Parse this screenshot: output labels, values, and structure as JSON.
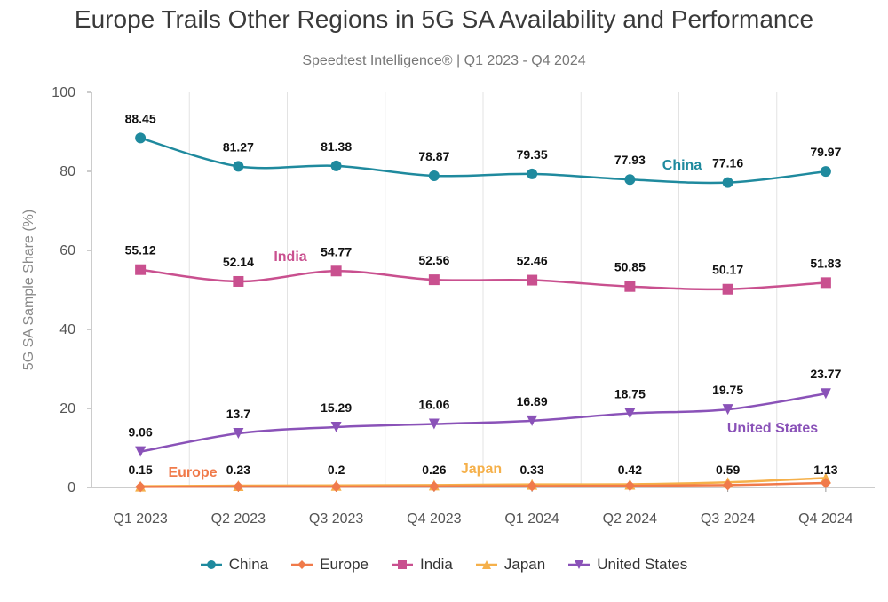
{
  "chart_data": {
    "type": "line",
    "title": "Europe Trails Other Regions in 5G SA Availability and Performance",
    "subtitle": "Speedtest Intelligence® | Q1 2023 - Q4 2024",
    "ylabel": "5G SA Sample Share (%)",
    "xlabel": "",
    "ylim": [
      0,
      100
    ],
    "yticks": [
      0,
      20,
      40,
      60,
      80,
      100
    ],
    "grid": "vertical",
    "legend_position": "bottom",
    "categories": [
      "Q1 2023",
      "Q2 2023",
      "Q3 2023",
      "Q4 2023",
      "Q1 2024",
      "Q2 2024",
      "Q3 2024",
      "Q4 2024"
    ],
    "series": [
      {
        "name": "China",
        "color": "#1f8a9e",
        "marker": "circle",
        "values": [
          88.45,
          81.27,
          81.38,
          78.87,
          79.35,
          77.93,
          77.16,
          79.97
        ],
        "value_labels": [
          "88.45",
          "81.27",
          "81.38",
          "78.87",
          "79.35",
          "77.93",
          "77.16",
          "79.97"
        ]
      },
      {
        "name": "Europe",
        "color": "#f07a4a",
        "marker": "diamond",
        "values": [
          0.15,
          0.23,
          0.2,
          0.26,
          0.33,
          0.42,
          0.59,
          1.13
        ],
        "value_labels": [
          "0.15",
          "0.23",
          "0.2",
          "0.26",
          "0.33",
          "0.42",
          "0.59",
          "1.13"
        ]
      },
      {
        "name": "India",
        "color": "#c9508f",
        "marker": "square",
        "values": [
          55.12,
          52.14,
          54.77,
          52.56,
          52.46,
          50.85,
          50.17,
          51.83
        ],
        "value_labels": [
          "55.12",
          "52.14",
          "54.77",
          "52.56",
          "52.46",
          "50.85",
          "50.17",
          "51.83"
        ]
      },
      {
        "name": "Japan",
        "color": "#f5b04a",
        "marker": "triangle-up",
        "values": [
          0.3,
          0.45,
          0.5,
          0.6,
          0.75,
          0.8,
          1.3,
          2.4
        ]
      },
      {
        "name": "United States",
        "color": "#8a52b8",
        "marker": "triangle-down",
        "values": [
          9.06,
          13.7,
          15.29,
          16.06,
          16.89,
          18.75,
          19.75,
          23.77
        ],
        "value_labels": [
          "9.06",
          "13.7",
          "15.29",
          "16.06",
          "16.89",
          "18.75",
          "19.75",
          "23.77"
        ]
      }
    ],
    "series_labels": [
      {
        "text": "China",
        "color": "#1f8a9e"
      },
      {
        "text": "India",
        "color": "#c9508f"
      },
      {
        "text": "United States",
        "color": "#8a52b8"
      },
      {
        "text": "Europe",
        "color": "#f07a4a"
      },
      {
        "text": "Japan",
        "color": "#f5b04a"
      }
    ]
  }
}
